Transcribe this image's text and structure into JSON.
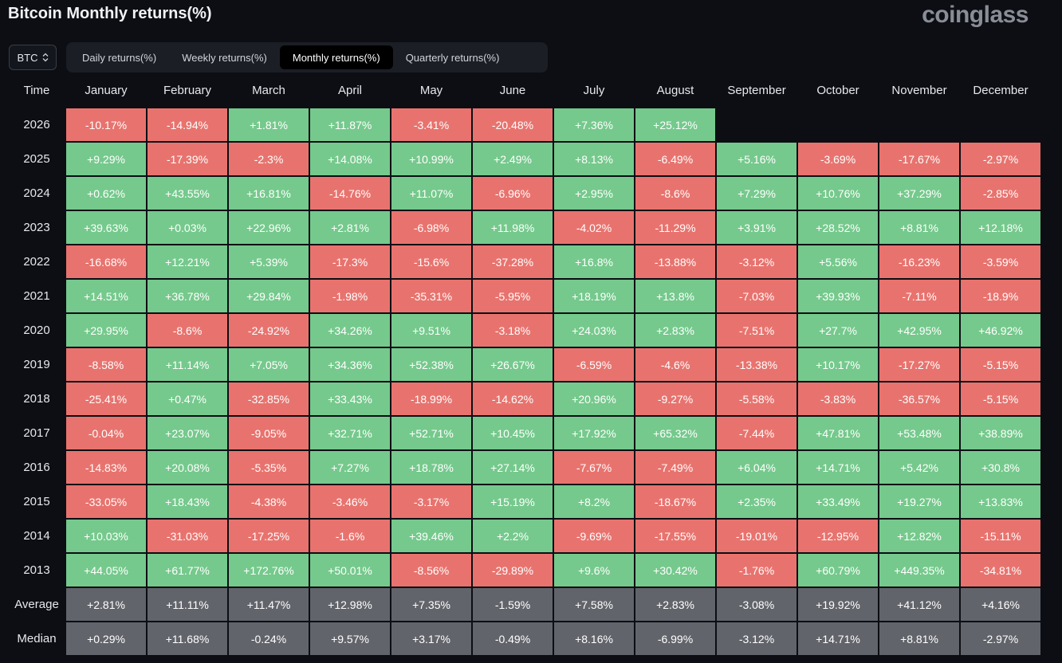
{
  "header": {
    "title": "Bitcoin Monthly returns(%)",
    "brand": "coinglass"
  },
  "coin_select": {
    "value": "BTC",
    "icon": "chevron-updown-icon"
  },
  "tabs": [
    {
      "label": "Daily returns(%)",
      "active": false
    },
    {
      "label": "Weekly returns(%)",
      "active": false
    },
    {
      "label": "Monthly returns(%)",
      "active": true
    },
    {
      "label": "Quarterly returns(%)",
      "active": false
    }
  ],
  "colors": {
    "positive": "#75c98c",
    "negative": "#e8736e",
    "summary": "#62646b",
    "background": "#0c0e14"
  },
  "table": {
    "corner": "Time",
    "columns": [
      "January",
      "February",
      "March",
      "April",
      "May",
      "June",
      "July",
      "August",
      "September",
      "October",
      "November",
      "December"
    ],
    "rows": [
      {
        "label": "2026",
        "values": [
          "-10.17%",
          "-14.94%",
          "+1.81%",
          "+11.87%",
          "-3.41%",
          "-20.48%",
          "+7.36%",
          "+25.12%",
          "",
          "",
          "",
          ""
        ]
      },
      {
        "label": "2025",
        "values": [
          "+9.29%",
          "-17.39%",
          "-2.3%",
          "+14.08%",
          "+10.99%",
          "+2.49%",
          "+8.13%",
          "-6.49%",
          "+5.16%",
          "-3.69%",
          "-17.67%",
          "-2.97%"
        ]
      },
      {
        "label": "2024",
        "values": [
          "+0.62%",
          "+43.55%",
          "+16.81%",
          "-14.76%",
          "+11.07%",
          "-6.96%",
          "+2.95%",
          "-8.6%",
          "+7.29%",
          "+10.76%",
          "+37.29%",
          "-2.85%"
        ]
      },
      {
        "label": "2023",
        "values": [
          "+39.63%",
          "+0.03%",
          "+22.96%",
          "+2.81%",
          "-6.98%",
          "+11.98%",
          "-4.02%",
          "-11.29%",
          "+3.91%",
          "+28.52%",
          "+8.81%",
          "+12.18%"
        ]
      },
      {
        "label": "2022",
        "values": [
          "-16.68%",
          "+12.21%",
          "+5.39%",
          "-17.3%",
          "-15.6%",
          "-37.28%",
          "+16.8%",
          "-13.88%",
          "-3.12%",
          "+5.56%",
          "-16.23%",
          "-3.59%"
        ]
      },
      {
        "label": "2021",
        "values": [
          "+14.51%",
          "+36.78%",
          "+29.84%",
          "-1.98%",
          "-35.31%",
          "-5.95%",
          "+18.19%",
          "+13.8%",
          "-7.03%",
          "+39.93%",
          "-7.11%",
          "-18.9%"
        ]
      },
      {
        "label": "2020",
        "values": [
          "+29.95%",
          "-8.6%",
          "-24.92%",
          "+34.26%",
          "+9.51%",
          "-3.18%",
          "+24.03%",
          "+2.83%",
          "-7.51%",
          "+27.7%",
          "+42.95%",
          "+46.92%"
        ]
      },
      {
        "label": "2019",
        "values": [
          "-8.58%",
          "+11.14%",
          "+7.05%",
          "+34.36%",
          "+52.38%",
          "+26.67%",
          "-6.59%",
          "-4.6%",
          "-13.38%",
          "+10.17%",
          "-17.27%",
          "-5.15%"
        ]
      },
      {
        "label": "2018",
        "values": [
          "-25.41%",
          "+0.47%",
          "-32.85%",
          "+33.43%",
          "-18.99%",
          "-14.62%",
          "+20.96%",
          "-9.27%",
          "-5.58%",
          "-3.83%",
          "-36.57%",
          "-5.15%"
        ]
      },
      {
        "label": "2017",
        "values": [
          "-0.04%",
          "+23.07%",
          "-9.05%",
          "+32.71%",
          "+52.71%",
          "+10.45%",
          "+17.92%",
          "+65.32%",
          "-7.44%",
          "+47.81%",
          "+53.48%",
          "+38.89%"
        ]
      },
      {
        "label": "2016",
        "values": [
          "-14.83%",
          "+20.08%",
          "-5.35%",
          "+7.27%",
          "+18.78%",
          "+27.14%",
          "-7.67%",
          "-7.49%",
          "+6.04%",
          "+14.71%",
          "+5.42%",
          "+30.8%"
        ]
      },
      {
        "label": "2015",
        "values": [
          "-33.05%",
          "+18.43%",
          "-4.38%",
          "-3.46%",
          "-3.17%",
          "+15.19%",
          "+8.2%",
          "-18.67%",
          "+2.35%",
          "+33.49%",
          "+19.27%",
          "+13.83%"
        ]
      },
      {
        "label": "2014",
        "values": [
          "+10.03%",
          "-31.03%",
          "-17.25%",
          "-1.6%",
          "+39.46%",
          "+2.2%",
          "-9.69%",
          "-17.55%",
          "-19.01%",
          "-12.95%",
          "+12.82%",
          "-15.11%"
        ]
      },
      {
        "label": "2013",
        "values": [
          "+44.05%",
          "+61.77%",
          "+172.76%",
          "+50.01%",
          "-8.56%",
          "-29.89%",
          "+9.6%",
          "+30.42%",
          "-1.76%",
          "+60.79%",
          "+449.35%",
          "-34.81%"
        ]
      }
    ],
    "summary": [
      {
        "label": "Average",
        "values": [
          "+2.81%",
          "+11.11%",
          "+11.47%",
          "+12.98%",
          "+7.35%",
          "-1.59%",
          "+7.58%",
          "+2.83%",
          "-3.08%",
          "+19.92%",
          "+41.12%",
          "+4.16%"
        ]
      },
      {
        "label": "Median",
        "values": [
          "+0.29%",
          "+11.68%",
          "-0.24%",
          "+9.57%",
          "+3.17%",
          "-0.49%",
          "+8.16%",
          "-6.99%",
          "-3.12%",
          "+14.71%",
          "+8.81%",
          "-2.97%"
        ]
      }
    ]
  }
}
